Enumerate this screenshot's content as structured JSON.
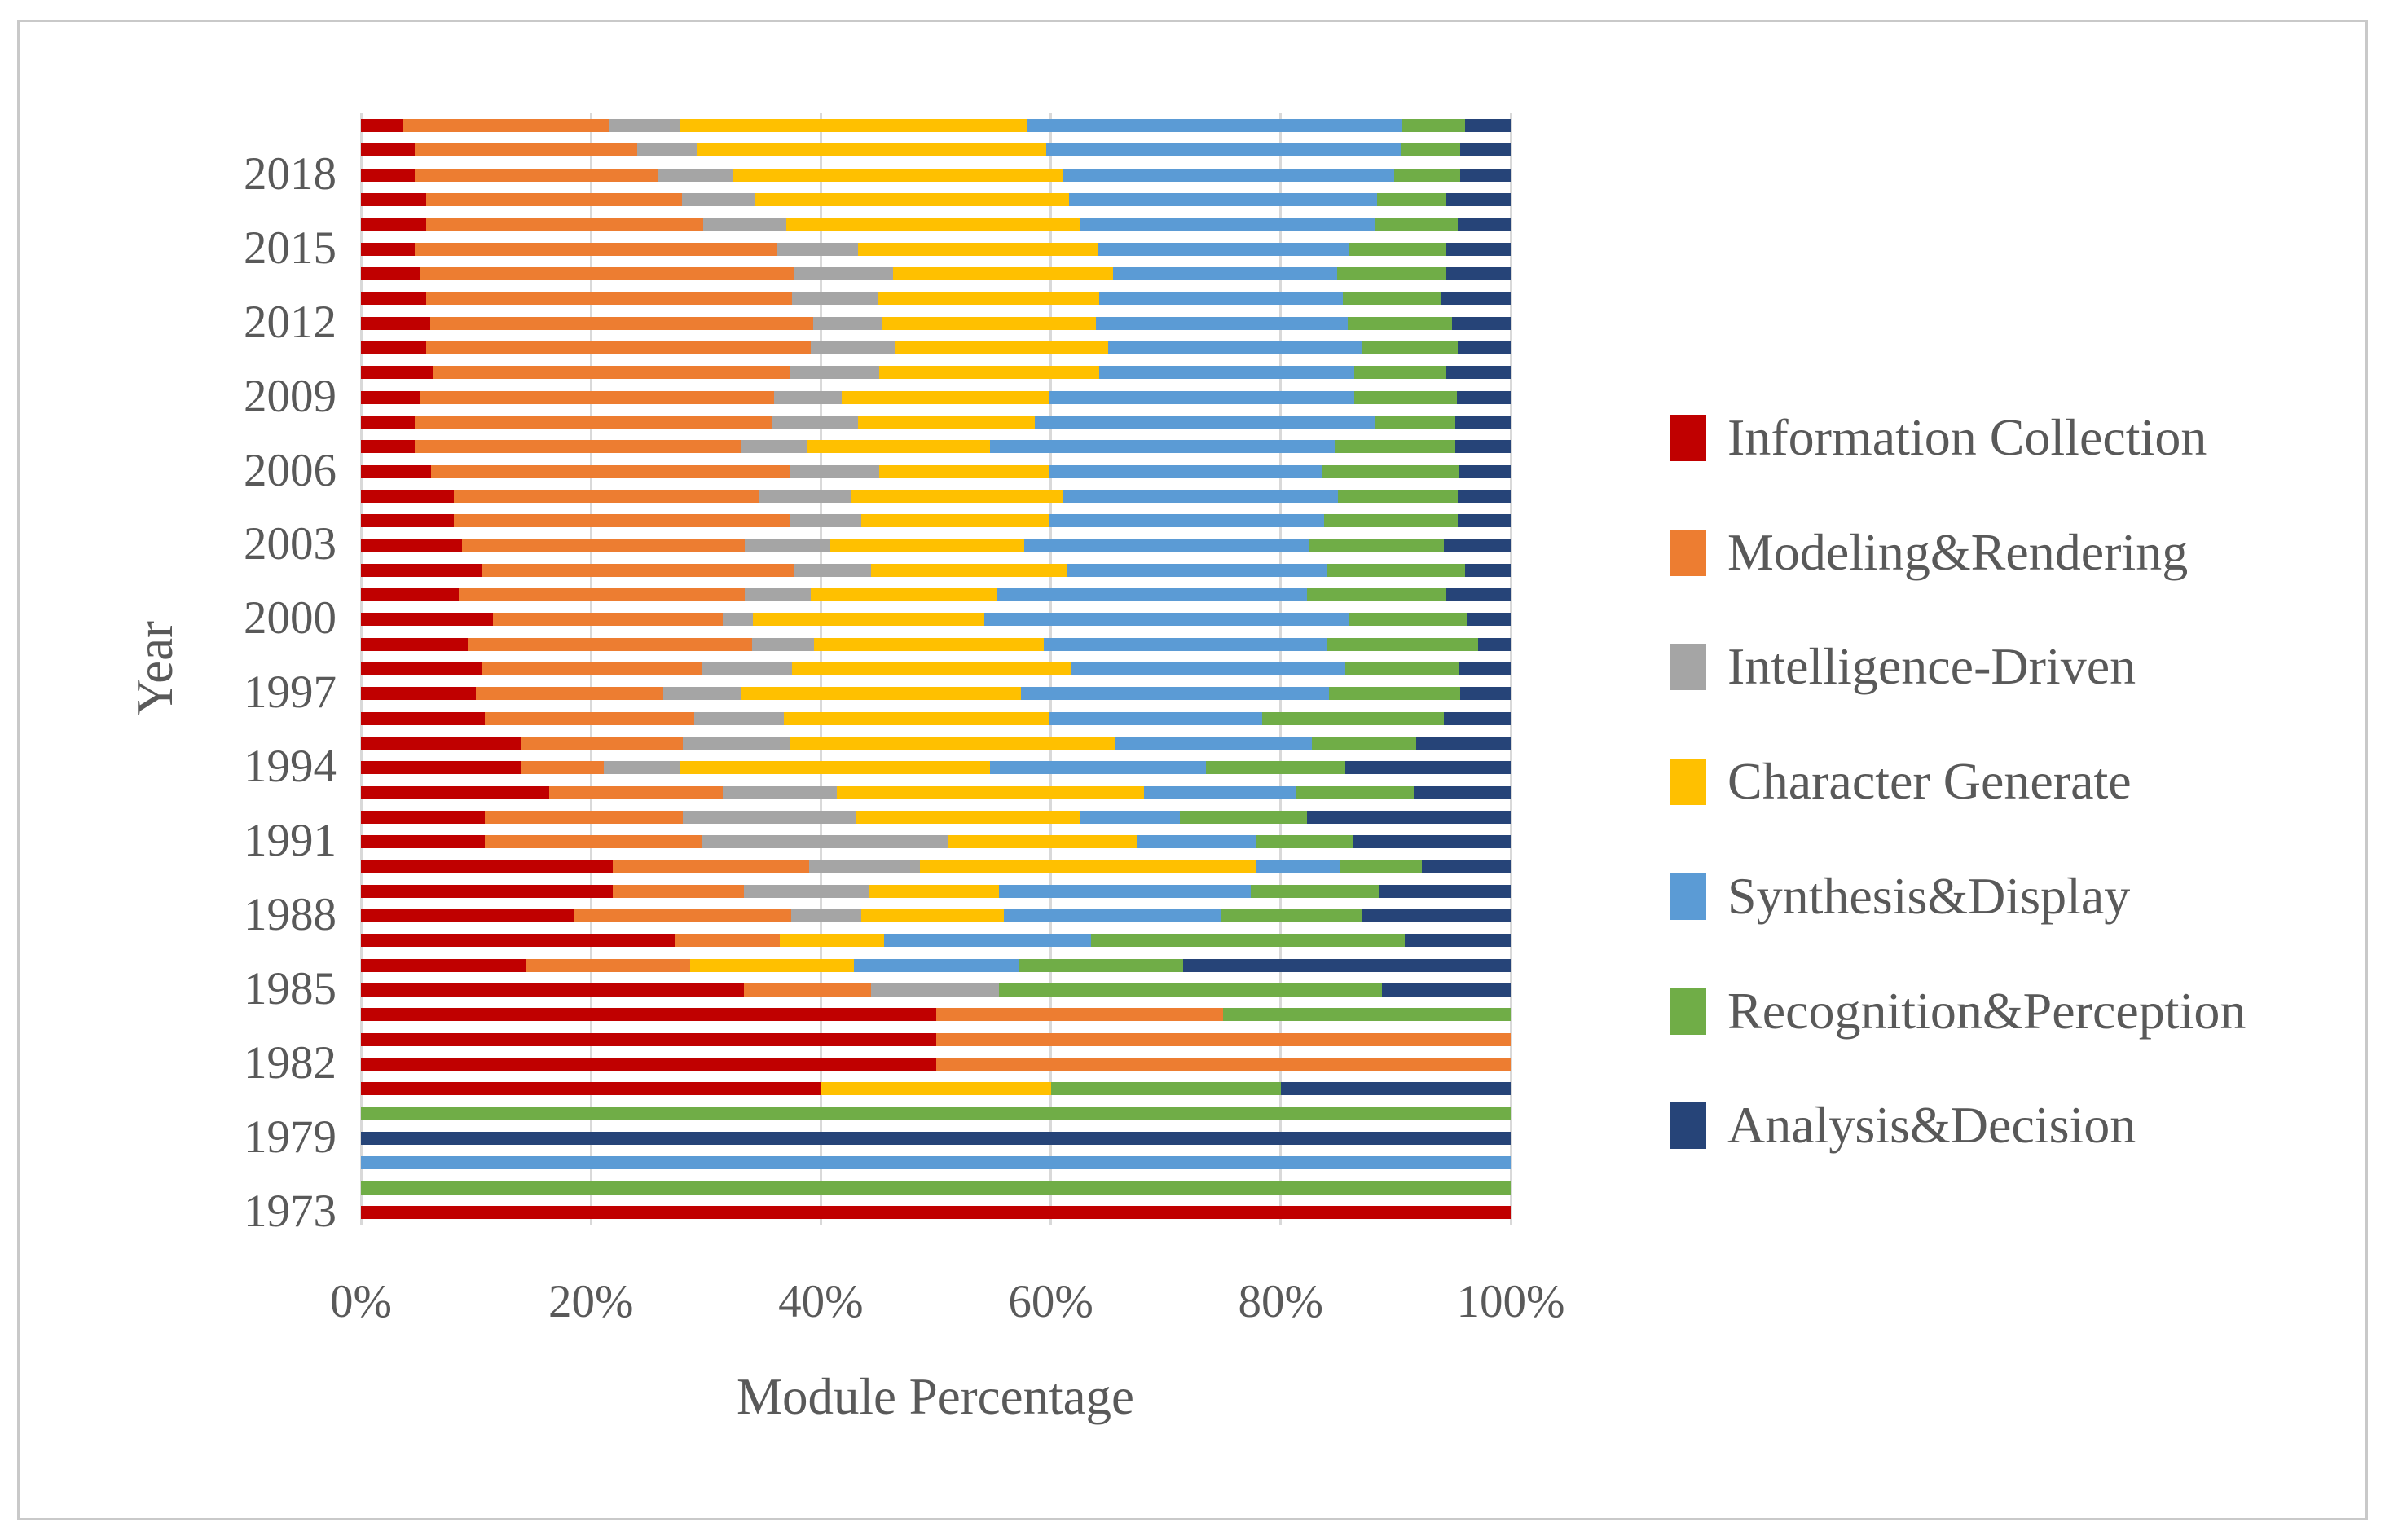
{
  "chart_data": {
    "type": "bar",
    "orientation": "horizontal",
    "stacked": true,
    "stacked_total_percent": 100,
    "title": "",
    "xlabel": "Module Percentage",
    "ylabel": "Year",
    "xlim": [
      0,
      100
    ],
    "grid": true,
    "legend_position": "right",
    "x_tick_labels": [
      "0%",
      "20%",
      "40%",
      "60%",
      "80%",
      "100%"
    ],
    "colors": {
      "text": "#595959",
      "gridline": "#d9d9d9",
      "border": "#c9c9c9",
      "background": "#ffffff"
    },
    "series": [
      {
        "name": "Information Collection",
        "color": "#c00000"
      },
      {
        "name": "Modeling&Rendering",
        "color": "#ed7d31"
      },
      {
        "name": "Intelligence-Driven",
        "color": "#a5a5a5"
      },
      {
        "name": "Character Generate",
        "color": "#ffc000"
      },
      {
        "name": "Synthesis&Display",
        "color": "#5b9bd5"
      },
      {
        "name": "Recognition&Perception",
        "color": "#70ad47"
      },
      {
        "name": "Analysis&Decision",
        "color": "#264478"
      }
    ],
    "rows": [
      {
        "year": "2020",
        "tick": "",
        "values": [
          3.6,
          18.0,
          6.1,
          30.3,
          32.5,
          5.5,
          4.0
        ]
      },
      {
        "year": "2019",
        "tick": "",
        "values": [
          4.7,
          19.3,
          5.3,
          30.3,
          30.8,
          5.2,
          4.4
        ]
      },
      {
        "year": "2018",
        "tick": "2018",
        "values": [
          4.7,
          21.1,
          6.6,
          28.7,
          28.8,
          5.7,
          4.4
        ]
      },
      {
        "year": "2017",
        "tick": "",
        "values": [
          5.7,
          22.2,
          6.3,
          27.4,
          26.8,
          6.0,
          5.6
        ]
      },
      {
        "year": "2016",
        "tick": "",
        "values": [
          5.7,
          24.1,
          7.2,
          25.6,
          25.6,
          7.2,
          4.6
        ]
      },
      {
        "year": "2015",
        "tick": "2015",
        "values": [
          4.7,
          31.5,
          7.0,
          20.9,
          21.9,
          8.4,
          5.6
        ]
      },
      {
        "year": "2014",
        "tick": "",
        "values": [
          5.2,
          32.4,
          8.7,
          19.1,
          19.5,
          9.4,
          5.7
        ]
      },
      {
        "year": "2013",
        "tick": "",
        "values": [
          5.7,
          31.8,
          7.4,
          19.3,
          21.2,
          8.5,
          6.1
        ]
      },
      {
        "year": "2012",
        "tick": "2012",
        "values": [
          6.0,
          33.3,
          6.0,
          18.6,
          21.9,
          9.1,
          5.1
        ]
      },
      {
        "year": "2011",
        "tick": "",
        "values": [
          5.7,
          33.4,
          7.4,
          18.5,
          22.0,
          8.4,
          4.6
        ]
      },
      {
        "year": "2010",
        "tick": "",
        "values": [
          6.3,
          31.0,
          7.8,
          19.1,
          22.2,
          7.9,
          5.7
        ]
      },
      {
        "year": "2009",
        "tick": "2009",
        "values": [
          5.2,
          30.7,
          5.9,
          18.0,
          26.6,
          8.9,
          4.7
        ]
      },
      {
        "year": "2008",
        "tick": "",
        "values": [
          4.7,
          31.0,
          7.5,
          15.4,
          29.6,
          7.0,
          4.8
        ]
      },
      {
        "year": "2007",
        "tick": "",
        "values": [
          4.7,
          28.4,
          5.7,
          15.9,
          30.0,
          10.5,
          4.8
        ]
      },
      {
        "year": "2006",
        "tick": "2006",
        "values": [
          6.1,
          31.2,
          7.8,
          14.7,
          23.8,
          11.9,
          4.5
        ]
      },
      {
        "year": "2005",
        "tick": "",
        "values": [
          8.1,
          26.5,
          8.0,
          18.4,
          24.0,
          10.4,
          4.6
        ]
      },
      {
        "year": "2004",
        "tick": "",
        "values": [
          8.1,
          29.2,
          6.2,
          16.4,
          23.9,
          11.6,
          4.6
        ]
      },
      {
        "year": "2003",
        "tick": "2003",
        "values": [
          8.8,
          24.6,
          7.4,
          16.9,
          24.7,
          11.8,
          5.8
        ]
      },
      {
        "year": "2002",
        "tick": "",
        "values": [
          10.5,
          27.2,
          6.7,
          17.0,
          22.6,
          12.0,
          4.0
        ]
      },
      {
        "year": "2001",
        "tick": "",
        "values": [
          8.5,
          24.9,
          5.7,
          16.2,
          27.0,
          12.1,
          5.6
        ]
      },
      {
        "year": "2000",
        "tick": "2000",
        "values": [
          11.5,
          20.0,
          2.6,
          20.1,
          31.7,
          10.3,
          3.8
        ]
      },
      {
        "year": "1999",
        "tick": "",
        "values": [
          9.3,
          24.7,
          5.4,
          20.0,
          24.6,
          13.2,
          2.8
        ]
      },
      {
        "year": "1998",
        "tick": "",
        "values": [
          10.5,
          19.1,
          7.9,
          24.3,
          23.8,
          9.9,
          4.5
        ]
      },
      {
        "year": "1997",
        "tick": "1997",
        "values": [
          10.0,
          16.3,
          6.8,
          24.3,
          26.8,
          11.4,
          4.4
        ]
      },
      {
        "year": "1996",
        "tick": "",
        "values": [
          10.8,
          18.2,
          7.8,
          23.1,
          18.5,
          15.8,
          5.8
        ]
      },
      {
        "year": "1995",
        "tick": "",
        "values": [
          13.9,
          14.1,
          9.3,
          28.3,
          17.1,
          9.1,
          8.2
        ]
      },
      {
        "year": "1994",
        "tick": "1994",
        "values": [
          13.9,
          7.2,
          6.6,
          27.0,
          18.8,
          12.1,
          14.4
        ]
      },
      {
        "year": "1993",
        "tick": "",
        "values": [
          16.4,
          15.1,
          9.9,
          26.7,
          13.2,
          10.3,
          8.4
        ]
      },
      {
        "year": "1992",
        "tick": "",
        "values": [
          10.8,
          17.2,
          15.0,
          19.5,
          8.7,
          11.1,
          17.7
        ]
      },
      {
        "year": "1991",
        "tick": "1991",
        "values": [
          10.8,
          18.8,
          21.5,
          16.4,
          10.4,
          8.4,
          13.7
        ]
      },
      {
        "year": "1990",
        "tick": "",
        "values": [
          21.9,
          17.1,
          9.6,
          29.3,
          7.2,
          7.2,
          7.7
        ]
      },
      {
        "year": "1989",
        "tick": "",
        "values": [
          21.9,
          11.4,
          10.9,
          11.3,
          21.9,
          11.1,
          11.5
        ]
      },
      {
        "year": "1988",
        "tick": "1988",
        "values": [
          18.6,
          18.8,
          6.1,
          12.4,
          18.9,
          12.3,
          12.9
        ]
      },
      {
        "year": "1987",
        "tick": "",
        "values": [
          27.3,
          9.1,
          0,
          9.1,
          18.0,
          27.3,
          9.2
        ]
      },
      {
        "year": "1986",
        "tick": "",
        "values": [
          14.3,
          14.3,
          0,
          14.3,
          14.3,
          14.3,
          28.5
        ]
      },
      {
        "year": "1985",
        "tick": "1985",
        "values": [
          33.3,
          11.1,
          11.1,
          0,
          0,
          33.3,
          11.2
        ]
      },
      {
        "year": "1984",
        "tick": "",
        "values": [
          50.0,
          25.0,
          0,
          0,
          0,
          25.0,
          0
        ]
      },
      {
        "year": "1983",
        "tick": "",
        "values": [
          50.0,
          50.0,
          0,
          0,
          0,
          0,
          0
        ]
      },
      {
        "year": "1982",
        "tick": "1982",
        "values": [
          50.0,
          50.0,
          0,
          0,
          0,
          0,
          0
        ]
      },
      {
        "year": "1981",
        "tick": "",
        "values": [
          40.0,
          0,
          0,
          20.0,
          0,
          20.0,
          20.0
        ]
      },
      {
        "year": "1980",
        "tick": "",
        "values": [
          0,
          0,
          0,
          0,
          0,
          100.0,
          0
        ]
      },
      {
        "year": "1979",
        "tick": "1979",
        "values": [
          0,
          0,
          0,
          0,
          0,
          0,
          100.0
        ]
      },
      {
        "year": "",
        "tick": "",
        "values": [
          0,
          0,
          0,
          0,
          100.0,
          0,
          0
        ]
      },
      {
        "year": "",
        "tick": "",
        "values": [
          0,
          0,
          0,
          0,
          0,
          100.0,
          0
        ]
      },
      {
        "year": "1973",
        "tick": "1973",
        "values": [
          100.0,
          0,
          0,
          0,
          0,
          0,
          0
        ]
      }
    ]
  }
}
